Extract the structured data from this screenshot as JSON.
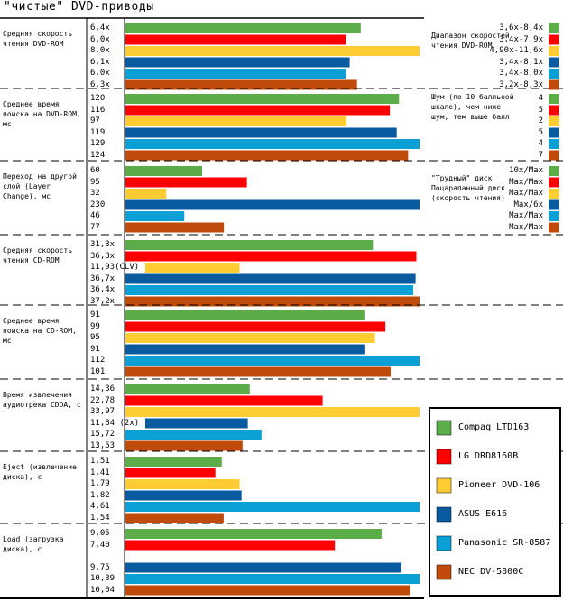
{
  "title": "\"чистые\" DVD-приводы",
  "chart_data": {
    "type": "bar",
    "orientation": "horizontal",
    "series_names": [
      "Compaq LTD163",
      "LG DRD8160B",
      "Pioneer DVD-106",
      "ASUS E616",
      "Panasonic SR-8587",
      "NEC DV-5800C"
    ],
    "colors": [
      "#5cac4a",
      "#ff0000",
      "#ffcc33",
      "#0a5aa0",
      "#0aa0d6",
      "#c04a0a"
    ],
    "groups": [
      {
        "label": "Средняя скорость чтения DVD-ROM",
        "values": [
          6.4,
          6.0,
          8.0,
          6.1,
          6.0,
          6.3
        ],
        "value_labels": [
          "6,4x",
          "6,0x",
          "8,0x",
          "6,1x",
          "6,0x",
          "6,3x"
        ],
        "max": 8.0
      },
      {
        "label": "Среднее время поиска на DVD-ROM, мс",
        "values": [
          120,
          116,
          97,
          119,
          129,
          124
        ],
        "value_labels": [
          "120",
          "116",
          "97",
          "119",
          "129",
          "124"
        ],
        "max": 129
      },
      {
        "label": "Переход на другой слой (Layer Change), мс",
        "values": [
          60,
          95,
          32,
          230,
          46,
          77
        ],
        "value_labels": [
          "60",
          "95",
          "32",
          "230",
          "46",
          "77"
        ],
        "max": 230
      },
      {
        "label": "Средняя скорость чтения CD-ROM",
        "values": [
          31.3,
          36.8,
          11.93,
          36.7,
          36.4,
          37.2
        ],
        "value_labels": [
          "31,3x",
          "36,8x",
          "11,93(CLV)",
          "36,7x",
          "36,4x",
          "37,2x"
        ],
        "max": 37.2
      },
      {
        "label": "Среднее время поиска на CD-ROM, мс",
        "values": [
          91,
          99,
          95,
          91,
          112,
          101
        ],
        "value_labels": [
          "91",
          "99",
          "95",
          "91",
          "112",
          "101"
        ],
        "max": 112
      },
      {
        "label": "Время извлечения аудиотрека CDDA, с",
        "values": [
          14.36,
          22.78,
          33.97,
          11.84,
          15.72,
          13.53
        ],
        "value_labels": [
          "14,36",
          "22,78",
          "33,97",
          "11,84 (2x)",
          "15,72",
          "13,53"
        ],
        "max": 33.97
      },
      {
        "label": "Eject (извлечение диска), с",
        "values": [
          1.51,
          1.41,
          1.79,
          1.82,
          4.61,
          1.54
        ],
        "value_labels": [
          "1,51",
          "1,41",
          "1,79",
          "1,82",
          "4,61",
          "1,54"
        ],
        "max": 4.61
      },
      {
        "label": "Load (загрузка диска), с",
        "values": [
          9.05,
          7.4,
          0,
          9.75,
          10.39,
          10.04
        ],
        "value_labels": [
          "9,05",
          "7,40",
          "",
          "9,75",
          "10,39",
          "10,04"
        ],
        "max": 10.39
      }
    ],
    "side_notes": [
      {
        "label": "Диапазон скоростей чтения DVD-ROM",
        "values": [
          "3,6x-8,4x",
          "3,4x-7,9x",
          "4,90x-11,6x",
          "3,4x-8,1x",
          "3,4x-8,0x",
          "3,2x-8,3x"
        ]
      },
      {
        "label": "Шум (по 10-балльной шкале), чем ниже шум, тем выше балл",
        "values": [
          "4",
          "5",
          "2",
          "5",
          "4",
          "7"
        ]
      },
      {
        "label": "\"Трудный\" диск Поцарапанный диск (скорость чтения)",
        "values": [
          "10x/Max",
          "Max/Max",
          "Max/Max",
          "Max/6x",
          "Max/Max",
          "Max/Max"
        ]
      }
    ]
  }
}
